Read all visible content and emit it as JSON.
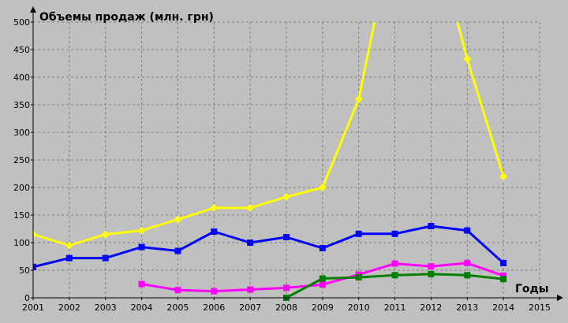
{
  "chart_data": {
    "type": "line",
    "ylabel": "Объемы продаж (млн. грн)",
    "xlabel": "Годы",
    "background": "#c0c0c0",
    "grid": true,
    "xlim": [
      2001,
      2015
    ],
    "ylim": [
      0,
      500
    ],
    "x_ticks": [
      "2001",
      "2002",
      "2003",
      "2004",
      "2005",
      "2006",
      "2007",
      "2008",
      "2009",
      "2010",
      "2011",
      "2012",
      "2013",
      "2014",
      "2015"
    ],
    "y_ticks": [
      "0",
      "50",
      "100",
      "150",
      "200",
      "250",
      "300",
      "350",
      "400",
      "450",
      "500"
    ],
    "series": [
      {
        "color": "#ffff00",
        "marker": "diamond",
        "x": [
          2001,
          2002,
          2003,
          2004,
          2005,
          2006,
          2007,
          2008,
          2009,
          2010,
          2011,
          2012,
          2013,
          2014
        ],
        "values": [
          115,
          95,
          115,
          122,
          142,
          163,
          163,
          183,
          200,
          360,
          680,
          680,
          433,
          220
        ]
      },
      {
        "color": "#0000ff",
        "marker": "square",
        "x": [
          2001,
          2002,
          2003,
          2004,
          2005,
          2006,
          2007,
          2008,
          2009,
          2010,
          2011,
          2012,
          2013,
          2014
        ],
        "values": [
          56,
          72,
          72,
          92,
          85,
          120,
          100,
          110,
          90,
          116,
          116,
          130,
          122,
          63
        ]
      },
      {
        "color": "#ff00ff",
        "marker": "square",
        "x": [
          2004,
          2005,
          2006,
          2007,
          2008,
          2009,
          2010,
          2011,
          2012,
          2013,
          2014
        ],
        "values": [
          25,
          14,
          12,
          15,
          18,
          24,
          42,
          62,
          57,
          63,
          40
        ]
      },
      {
        "color": "#008000",
        "marker": "square",
        "x": [
          2008,
          2009,
          2010,
          2011,
          2012,
          2013,
          2014
        ],
        "values": [
          0,
          35,
          37,
          41,
          43,
          41,
          34
        ]
      }
    ]
  }
}
